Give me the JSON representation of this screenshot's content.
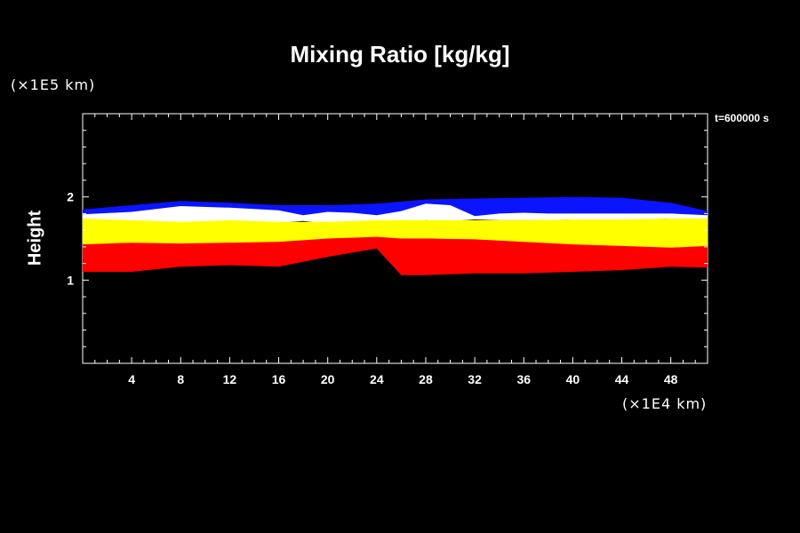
{
  "chart_data": {
    "type": "heatmap",
    "title": "Mixing Ratio [kg/kg]",
    "ylabel": "Height",
    "xlabel": "",
    "x_unit": "(×1E4 km)",
    "y_unit": "(×1E5 km)",
    "time_label": "t=600000 s",
    "xlim": [
      0,
      51
    ],
    "ylim": [
      0,
      3
    ],
    "x_ticks": [
      4,
      8,
      12,
      16,
      20,
      24,
      28,
      32,
      36,
      40,
      44,
      48
    ],
    "y_ticks": [
      1,
      2
    ],
    "grid": false,
    "colors": {
      "background": "#000000",
      "blue": "#0a14ff",
      "white": "#ffffff",
      "yellow": "#ffff00",
      "red": "#ff0000"
    },
    "bands": [
      {
        "color": "blue",
        "x": [
          0,
          4,
          8,
          12,
          16,
          20,
          24,
          28,
          32,
          36,
          40,
          44,
          48,
          51
        ],
        "top": [
          1.85,
          1.9,
          1.95,
          1.93,
          1.9,
          1.9,
          1.92,
          1.97,
          1.98,
          1.99,
          2.0,
          1.99,
          1.93,
          1.83
        ],
        "bottom": [
          1.74,
          1.74,
          1.76,
          1.75,
          1.74,
          1.75,
          1.76,
          1.76,
          1.75,
          1.74,
          1.72,
          1.75,
          1.78,
          1.78
        ]
      },
      {
        "color": "white",
        "x": [
          0,
          4,
          8,
          12,
          16,
          18,
          20,
          22,
          24,
          26,
          28,
          30,
          32,
          34,
          36,
          38,
          40,
          44,
          48,
          51
        ],
        "top": [
          1.79,
          1.82,
          1.89,
          1.87,
          1.84,
          1.78,
          1.82,
          1.81,
          1.78,
          1.83,
          1.92,
          1.9,
          1.77,
          1.8,
          1.81,
          1.8,
          1.8,
          1.8,
          1.8,
          1.78
        ],
        "bottom": [
          1.7,
          1.7,
          1.68,
          1.7,
          1.69,
          1.71,
          1.68,
          1.68,
          1.7,
          1.7,
          1.72,
          1.71,
          1.73,
          1.72,
          1.72,
          1.72,
          1.73,
          1.72,
          1.74,
          1.73
        ]
      },
      {
        "color": "yellow",
        "x": [
          0,
          4,
          8,
          12,
          16,
          20,
          24,
          28,
          32,
          36,
          40,
          44,
          48,
          51
        ],
        "top": [
          1.74,
          1.72,
          1.7,
          1.72,
          1.7,
          1.7,
          1.72,
          1.72,
          1.72,
          1.72,
          1.73,
          1.73,
          1.74,
          1.74
        ],
        "bottom": [
          1.42,
          1.44,
          1.43,
          1.44,
          1.45,
          1.48,
          1.5,
          1.5,
          1.48,
          1.45,
          1.42,
          1.4,
          1.38,
          1.4
        ]
      },
      {
        "color": "red",
        "x": [
          0,
          4,
          8,
          12,
          16,
          20,
          24,
          26,
          28,
          32,
          36,
          40,
          44,
          48,
          51
        ],
        "top": [
          1.43,
          1.45,
          1.44,
          1.45,
          1.46,
          1.5,
          1.52,
          1.5,
          1.5,
          1.49,
          1.46,
          1.43,
          1.41,
          1.39,
          1.41
        ],
        "bottom": [
          1.1,
          1.1,
          1.16,
          1.18,
          1.16,
          1.28,
          1.38,
          1.06,
          1.06,
          1.08,
          1.08,
          1.1,
          1.12,
          1.16,
          1.15
        ]
      }
    ]
  }
}
